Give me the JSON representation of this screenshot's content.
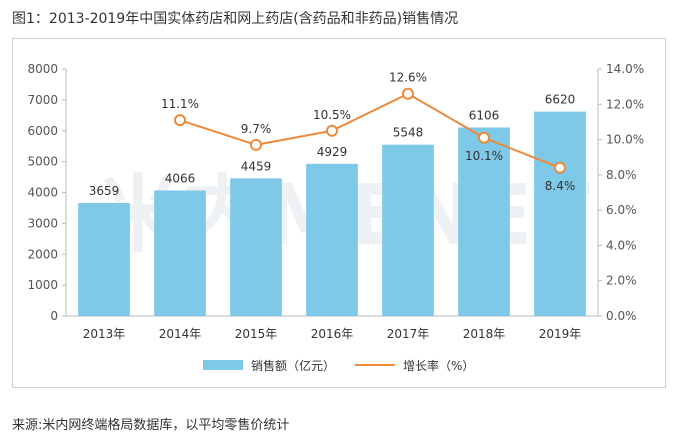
{
  "title": "图1：2013-2019年中国实体药店和网上药店(含药品和非药品)销售情况",
  "source": "来源:米内网终端格局数据库，以平均零售价统计",
  "watermark": "米内MENET",
  "chart_data": {
    "type": "bar",
    "categories": [
      "2013年",
      "2014年",
      "2015年",
      "2016年",
      "2017年",
      "2018年",
      "2019年"
    ],
    "series": [
      {
        "name": "销售额（亿元）",
        "type": "bar",
        "axis": "left",
        "color": "#7ec8e8",
        "values": [
          3659,
          4066,
          4459,
          4929,
          5548,
          6106,
          6620
        ],
        "labels": [
          "3659",
          "4066",
          "4459",
          "4929",
          "5548",
          "6106",
          "6620"
        ]
      },
      {
        "name": "增长率（%）",
        "type": "line",
        "axis": "right",
        "color": "#ec8a3c",
        "values": [
          null,
          11.1,
          9.7,
          10.5,
          12.6,
          10.1,
          8.4
        ],
        "labels": [
          "",
          "11.1%",
          "9.7%",
          "10.5%",
          "12.6%",
          "10.1%",
          "8.4%"
        ]
      }
    ],
    "y_left": {
      "lim": [
        0,
        8000
      ],
      "ticks": [
        "0",
        "1000",
        "2000",
        "3000",
        "4000",
        "5000",
        "6000",
        "7000",
        "8000"
      ]
    },
    "y_right": {
      "lim": [
        0,
        14
      ],
      "ticks": [
        "0.0%",
        "2.0%",
        "4.0%",
        "6.0%",
        "8.0%",
        "10.0%",
        "12.0%",
        "14.0%"
      ]
    },
    "grid": false,
    "legend": "bottom"
  }
}
